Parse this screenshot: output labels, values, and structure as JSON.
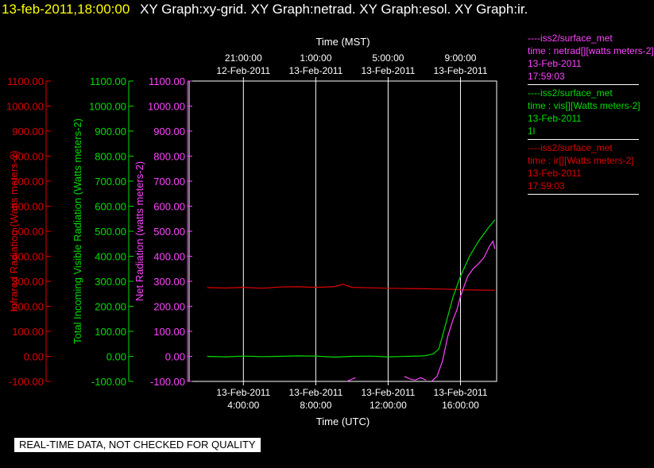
{
  "header": {
    "time": "13-feb-2011,18:00:00",
    "graphs": "XY Graph:xy-grid.  XY Graph:netrad.  XY Graph:esol.  XY Graph:ir."
  },
  "disclaimer": "REAL-TIME DATA, NOT CHECKED FOR QUALITY",
  "legend": [
    {
      "color": "#ff44ff",
      "lines": [
        "----iss2/surface_met",
        "time : netrad[][watts meters-2]",
        "13-Feb-2011",
        "17:59:03"
      ]
    },
    {
      "color": "#00dd00",
      "lines": [
        "----iss2/surface_met",
        "time : vis[][Watts meters-2]",
        "13-Feb-2011",
        "1l"
      ]
    },
    {
      "color": "#dd0000",
      "lines": [
        "----iss2/surface_met",
        "time : ir[][Watts meters-2]",
        "13-Feb-2011",
        "17:59:03"
      ]
    }
  ],
  "chart_data": {
    "type": "line",
    "xlabel_bottom": "Time (UTC)",
    "xlabel_top": "Time (MST)",
    "x_unit": "hours UTC on 13-Feb-2011",
    "xlim": [
      1.0,
      18.0
    ],
    "ylim": [
      -100,
      1100
    ],
    "grid": true,
    "bottom_ticks": [
      {
        "x": 4,
        "date": "13-Feb-2011",
        "time": "4:00:00"
      },
      {
        "x": 8,
        "date": "13-Feb-2011",
        "time": "8:00:00"
      },
      {
        "x": 12,
        "date": "13-Feb-2011",
        "time": "12:00:00"
      },
      {
        "x": 16,
        "date": "13-Feb-2011",
        "time": "16:00:00"
      }
    ],
    "top_ticks": [
      {
        "x": 4,
        "time": "21:00:00",
        "date": "12-Feb-2011"
      },
      {
        "x": 8,
        "time": "1:00:00",
        "date": "13-Feb-2011"
      },
      {
        "x": 12,
        "time": "5:00:00",
        "date": "13-Feb-2011"
      },
      {
        "x": 16,
        "time": "9:00:00",
        "date": "13-Feb-2011"
      }
    ],
    "y_axes": [
      {
        "label": "Infrared Radiation (Watts meters-2)",
        "color": "#dd0000",
        "ticks": [
          "1100.00",
          "1000.00",
          "900.00",
          "800.00",
          "700.00",
          "600.00",
          "500.00",
          "400.00",
          "300.00",
          "200.00",
          "100.00",
          "0.00",
          "-100.00"
        ]
      },
      {
        "label": "Total Incoming Visible Radiation (Watts meters-2)",
        "color": "#00dd00",
        "ticks": [
          "1100.00",
          "1000.00",
          "900.00",
          "800.00",
          "700.00",
          "600.00",
          "500.00",
          "400.00",
          "300.00",
          "200.00",
          "100.00",
          "0.00",
          "-100.00"
        ]
      },
      {
        "label": "Net Radiation (watts meters-2)",
        "color": "#ff44ff",
        "ticks": [
          "1100.00",
          "1000.00",
          "900.00",
          "800.00",
          "700.00",
          "600.00",
          "500.00",
          "400.00",
          "300.00",
          "200.00",
          "100.00",
          "0.00",
          "-100.00"
        ]
      }
    ],
    "series": [
      {
        "name": "time : ir[][Watts meters-2]",
        "color": "#dd0000",
        "x": [
          2.0,
          3.0,
          4.0,
          5.0,
          6.0,
          7.0,
          8.0,
          9.0,
          9.5,
          10.0,
          11.0,
          12.0,
          13.0,
          14.0,
          15.0,
          15.5,
          16.0,
          17.0,
          17.9
        ],
        "y": [
          275,
          273,
          276,
          272,
          277,
          278,
          276,
          278,
          288,
          276,
          274,
          272,
          271,
          270,
          269,
          268,
          266,
          265,
          264
        ]
      },
      {
        "name": "time : vis[][Watts meters-2]",
        "color": "#00dd00",
        "x": [
          2.0,
          3.0,
          4.0,
          5.0,
          6.0,
          7.0,
          8.0,
          9.0,
          10.0,
          11.0,
          12.0,
          13.0,
          14.0,
          14.5,
          14.8,
          15.0,
          15.3,
          15.6,
          16.0,
          16.5,
          17.0,
          17.5,
          17.9
        ],
        "y": [
          0,
          -2,
          1,
          -1,
          0,
          2,
          1,
          -3,
          0,
          1,
          -2,
          0,
          2,
          10,
          30,
          80,
          160,
          240,
          320,
          400,
          460,
          510,
          545
        ]
      },
      {
        "name": "time : netrad[][watts meters-2]",
        "color": "#ff44ff",
        "x": [
          14.4,
          14.7,
          15.0,
          15.3,
          15.6,
          15.8,
          16.0,
          16.2,
          16.4,
          16.7,
          17.0,
          17.3,
          17.6,
          17.8,
          17.9
        ],
        "y": [
          -100,
          -80,
          -20,
          80,
          150,
          185,
          240,
          280,
          320,
          350,
          370,
          395,
          440,
          460,
          430
        ]
      },
      {
        "name": "time : netrad[][watts meters-2]",
        "color": "#ff44ff",
        "x": [
          9.7,
          10.2
        ],
        "y": [
          -100,
          -85
        ]
      },
      {
        "name": "time : netrad[][watts meters-2]",
        "color": "#ff44ff",
        "x": [
          12.9,
          13.2,
          13.5,
          13.8,
          14.1
        ],
        "y": [
          -80,
          -90,
          -95,
          -85,
          -95
        ]
      }
    ]
  }
}
